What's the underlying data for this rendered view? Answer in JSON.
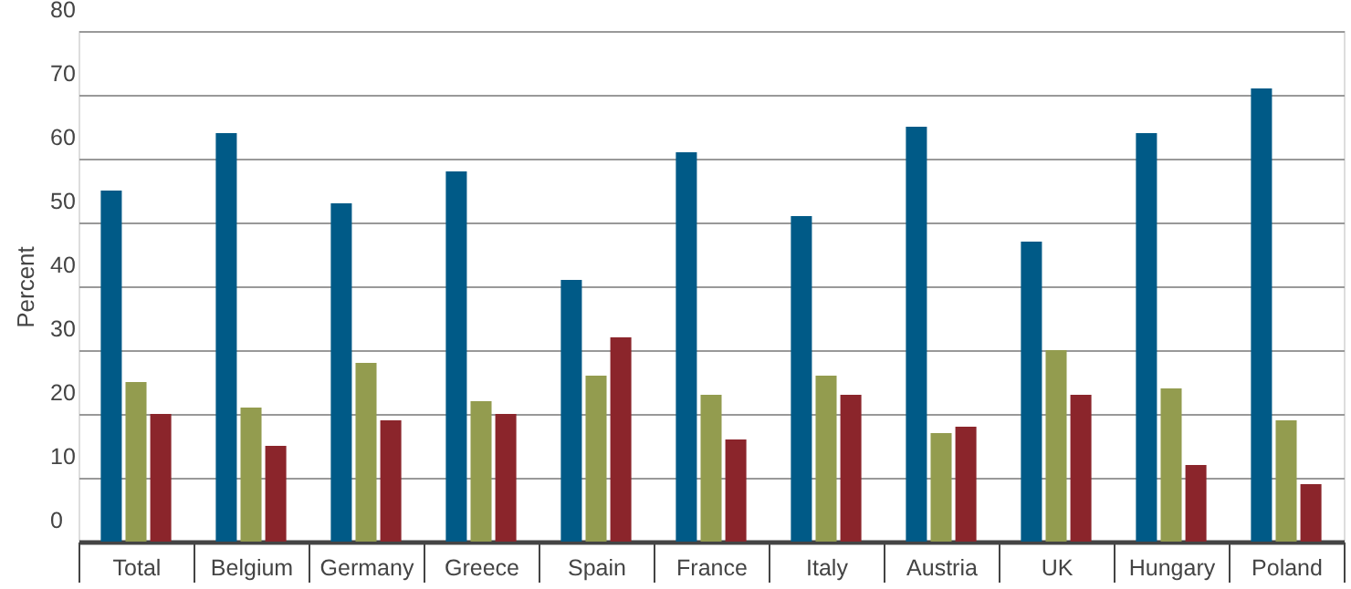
{
  "chart_data": {
    "type": "bar",
    "ylabel": "Percent",
    "categories": [
      "Total",
      "Belgium",
      "Germany",
      "Greece",
      "Spain",
      "France",
      "Italy",
      "Austria",
      "UK",
      "Hungary",
      "Poland"
    ],
    "series": [
      {
        "color": "#005a87",
        "values": [
          55,
          64,
          53,
          58,
          41,
          61,
          51,
          65,
          47,
          64,
          71
        ]
      },
      {
        "color": "#939c4f",
        "values": [
          25,
          21,
          28,
          22,
          26,
          23,
          26,
          17,
          30,
          24,
          19
        ]
      },
      {
        "color": "#8b252b",
        "values": [
          20,
          15,
          19,
          20,
          32,
          16,
          23,
          18,
          23,
          12,
          9
        ]
      }
    ],
    "ylim": [
      0,
      80
    ],
    "yticks": [
      0,
      10,
      20,
      30,
      40,
      50,
      60,
      70,
      80
    ],
    "grid": "y"
  }
}
